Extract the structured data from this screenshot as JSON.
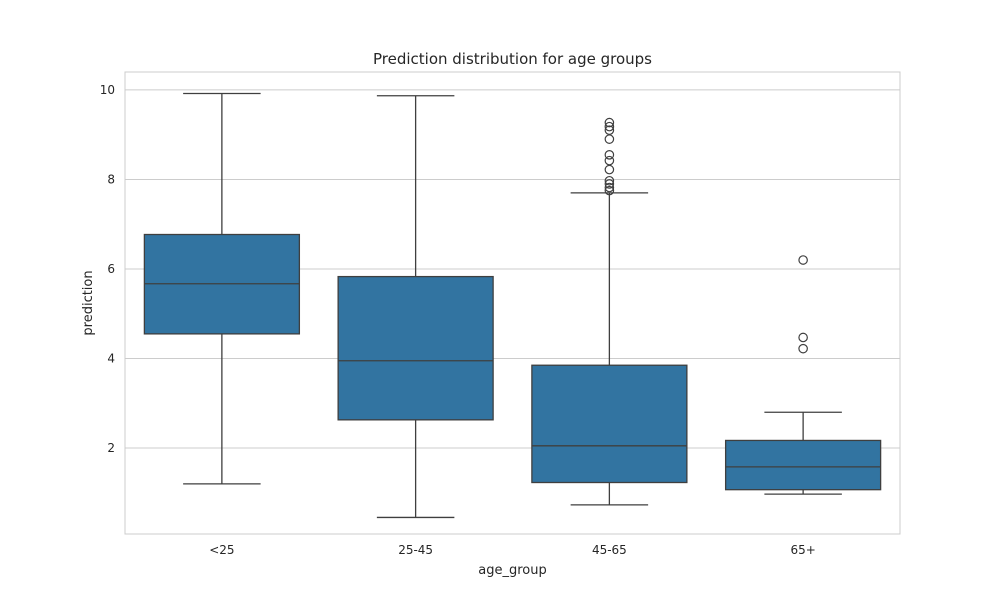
{
  "chart_data": {
    "type": "box",
    "title": "Prediction distribution for age groups",
    "xlabel": "age_group",
    "ylabel": "prediction",
    "ylim": [
      0.08,
      10.4
    ],
    "yticks": [
      2,
      4,
      6,
      8,
      10
    ],
    "grid": "horizontal",
    "style": "whitegrid",
    "box_color": "#3274a1",
    "line_color": "#3f3f3f",
    "grid_color": "#cccccc",
    "categories": [
      "<25",
      "25-45",
      "45-65",
      "65+"
    ],
    "boxes": [
      {
        "category": "<25",
        "whisker_low": 1.2,
        "q1": 4.55,
        "median": 5.67,
        "q3": 6.77,
        "whisker_high": 9.92,
        "outliers": []
      },
      {
        "category": "25-45",
        "whisker_low": 0.45,
        "q1": 2.63,
        "median": 3.95,
        "q3": 5.83,
        "whisker_high": 9.87,
        "outliers": []
      },
      {
        "category": "45-65",
        "whisker_low": 0.73,
        "q1": 1.23,
        "median": 2.05,
        "q3": 3.85,
        "whisker_high": 7.7,
        "outliers": [
          7.75,
          7.82,
          7.9,
          7.97,
          8.22,
          8.42,
          8.55,
          8.9,
          9.1,
          9.18,
          9.27
        ]
      },
      {
        "category": "65+",
        "whisker_low": 0.97,
        "q1": 1.07,
        "median": 1.58,
        "q3": 2.17,
        "whisker_high": 2.8,
        "outliers": [
          4.22,
          4.47,
          6.2
        ]
      }
    ]
  }
}
